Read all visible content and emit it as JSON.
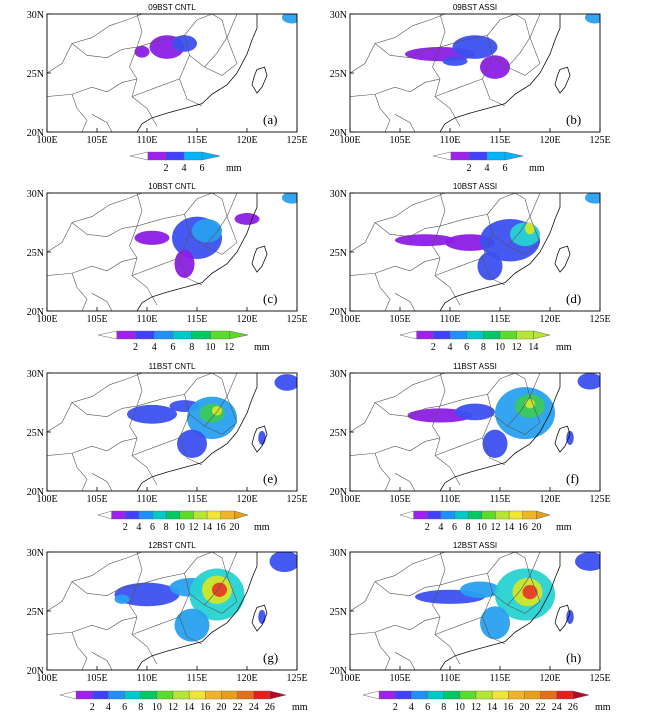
{
  "figure": {
    "axes": {
      "x_ticks": [
        "100E",
        "105E",
        "110E",
        "115E",
        "120E",
        "125E"
      ],
      "y_ticks": [
        "20N",
        "25N",
        "30N"
      ]
    },
    "colorbars": [
      {
        "levels": [
          "2",
          "4",
          "6"
        ],
        "unit": "mm",
        "colors": [
          "#a020f0",
          "#4040ff",
          "#00b4ff"
        ]
      },
      {
        "levels": [
          "2",
          "4",
          "6",
          "8",
          "10",
          "12"
        ],
        "unit": "mm",
        "colors": [
          "#a020f0",
          "#4040ff",
          "#1e90ff",
          "#00c8c8",
          "#00c864",
          "#5adc28"
        ]
      },
      {
        "levels": [
          "2",
          "4",
          "6",
          "8",
          "10",
          "12",
          "14"
        ],
        "unit": "mm",
        "colors": [
          "#a020f0",
          "#4040ff",
          "#1e90ff",
          "#00c8c8",
          "#00c864",
          "#5adc28",
          "#b4e632"
        ]
      },
      {
        "levels": [
          "2",
          "4",
          "6",
          "8",
          "10",
          "12",
          "14",
          "16",
          "20"
        ],
        "unit": "mm",
        "colors": [
          "#a020f0",
          "#4040ff",
          "#1e90ff",
          "#00c8c8",
          "#00c864",
          "#5adc28",
          "#b4e632",
          "#f0e632",
          "#f0b428",
          "#e6a014"
        ]
      },
      {
        "levels": [
          "2",
          "4",
          "6",
          "8",
          "10",
          "12",
          "14",
          "16",
          "20",
          "22",
          "24",
          "26"
        ],
        "unit": "mm",
        "colors": [
          "#a020f0",
          "#4040ff",
          "#1e90ff",
          "#00c8c8",
          "#00c864",
          "#5adc28",
          "#b4e632",
          "#f0e632",
          "#f0b428",
          "#e6a014",
          "#e66e14",
          "#e61e1e",
          "#b40a28"
        ]
      }
    ],
    "panels": [
      {
        "title": "09BST  CNTL",
        "label": "(a)",
        "colorbar": 0
      },
      {
        "title": "09BST  ASSI",
        "label": "(b)",
        "colorbar": 0
      },
      {
        "title": "10BST  CNTL",
        "label": "(c)",
        "colorbar": 1
      },
      {
        "title": "10BST  ASSI",
        "label": "(d)",
        "colorbar": 2
      },
      {
        "title": "11BST  CNTL",
        "label": "(e)",
        "colorbar": 3
      },
      {
        "title": "11BST  ASSI",
        "label": "(f)",
        "colorbar": 3
      },
      {
        "title": "12BST  CNTL",
        "label": "(g)",
        "colorbar": 4
      },
      {
        "title": "12BST  ASSI",
        "label": "(h)",
        "colorbar": 4
      }
    ],
    "rain_colors": [
      "#8c1ee6",
      "#3c50f0",
      "#28a0f0",
      "#28d2d2",
      "#3cc85a",
      "#d2e628",
      "#f0b43c",
      "#e63c28"
    ]
  }
}
